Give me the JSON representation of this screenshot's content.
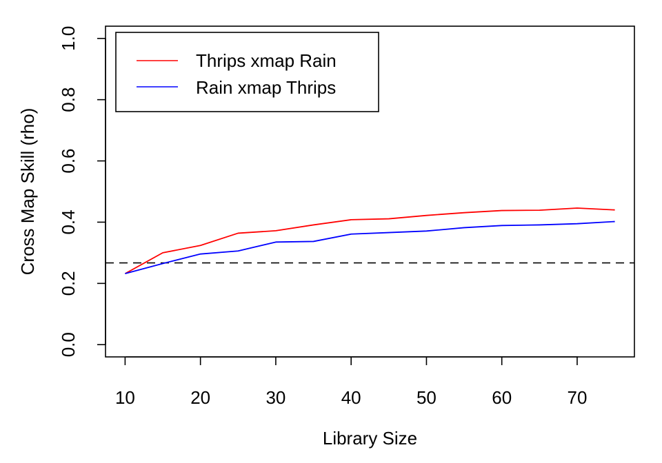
{
  "chart_data": {
    "type": "line",
    "title": "",
    "xlabel": "Library Size",
    "ylabel": "Cross Map Skill (rho)",
    "xlim": [
      7.4,
      77.6
    ],
    "ylim": [
      -0.04,
      1.04
    ],
    "x_ticks": [
      10,
      20,
      30,
      40,
      50,
      60,
      70
    ],
    "y_ticks": [
      0.0,
      0.2,
      0.4,
      0.6,
      0.8,
      1.0
    ],
    "x_tick_labels": [
      "10",
      "20",
      "30",
      "40",
      "50",
      "60",
      "70"
    ],
    "y_tick_labels": [
      "0.0",
      "0.2",
      "0.4",
      "0.6",
      "0.8",
      "1.0"
    ],
    "x": [
      10,
      15,
      20,
      25,
      30,
      35,
      40,
      45,
      50,
      55,
      60,
      65,
      70,
      75
    ],
    "series": [
      {
        "name": "Thrips xmap Rain",
        "color": "#ff0000",
        "values": [
          0.232,
          0.3,
          0.324,
          0.364,
          0.372,
          0.391,
          0.408,
          0.411,
          0.422,
          0.431,
          0.438,
          0.439,
          0.446,
          0.44
        ]
      },
      {
        "name": "Rain xmap Thrips",
        "color": "#0000ff",
        "values": [
          0.232,
          0.265,
          0.296,
          0.306,
          0.335,
          0.337,
          0.361,
          0.366,
          0.371,
          0.382,
          0.389,
          0.391,
          0.395,
          0.402
        ]
      }
    ],
    "reference_lines": [
      {
        "y": 0.267,
        "style": "dashed",
        "color": "#000000"
      }
    ],
    "grid": false,
    "legend_position": "top-left"
  }
}
